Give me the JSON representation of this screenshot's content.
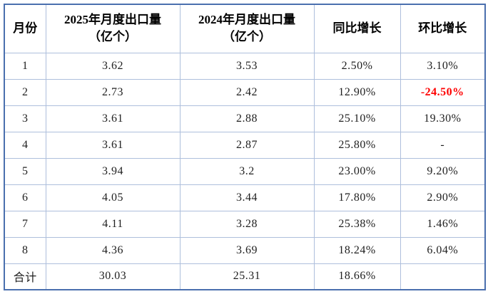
{
  "table": {
    "headers": {
      "month": "月份",
      "y2025_line1": "2025年月度出口量",
      "y2025_line2": "（亿个）",
      "y2024_line1": "2024年月度出口量",
      "y2024_line2": "（亿个）",
      "yoy": "同比增长",
      "mom": "环比增长"
    },
    "rows": [
      {
        "month": "1",
        "y2025": "3.62",
        "y2024": "3.53",
        "yoy": "2.50%",
        "mom": "3.10%"
      },
      {
        "month": "2",
        "y2025": "2.73",
        "y2024": "2.42",
        "yoy": "12.90%",
        "mom": "-24.50%"
      },
      {
        "month": "3",
        "y2025": "3.61",
        "y2024": "2.88",
        "yoy": "25.10%",
        "mom": "19.30%"
      },
      {
        "month": "4",
        "y2025": "3.61",
        "y2024": "2.87",
        "yoy": "25.80%",
        "mom": "-"
      },
      {
        "month": "5",
        "y2025": "3.94",
        "y2024": "3.2",
        "yoy": "23.00%",
        "mom": "9.20%"
      },
      {
        "month": "6",
        "y2025": "4.05",
        "y2024": "3.44",
        "yoy": "17.80%",
        "mom": "2.90%"
      },
      {
        "month": "7",
        "y2025": "4.11",
        "y2024": "3.28",
        "yoy": "25.38%",
        "mom": "1.46%"
      },
      {
        "month": "8",
        "y2025": "4.36",
        "y2024": "3.69",
        "yoy": "18.24%",
        "mom": "6.04%"
      },
      {
        "month": "合计",
        "y2025": "30.03",
        "y2024": "25.31",
        "yoy": "18.66%",
        "mom": ""
      }
    ]
  },
  "colors": {
    "outer_border": "#4a6fae",
    "grid_line": "#aebfdc",
    "header_text": "#000000",
    "body_text": "#1f1f1f",
    "negative_value": "#fe0000",
    "background": "#ffffff"
  },
  "chart_data": {
    "type": "table",
    "title": "",
    "columns": [
      "月份",
      "2025年月度出口量（亿个）",
      "2024年月度出口量（亿个）",
      "同比增长",
      "环比增长"
    ],
    "categories": [
      "1",
      "2",
      "3",
      "4",
      "5",
      "6",
      "7",
      "8",
      "合计"
    ],
    "series": [
      {
        "name": "2025年月度出口量（亿个）",
        "values": [
          3.62,
          2.73,
          3.61,
          3.61,
          3.94,
          4.05,
          4.11,
          4.36,
          30.03
        ]
      },
      {
        "name": "2024年月度出口量（亿个）",
        "values": [
          3.53,
          2.42,
          2.88,
          2.87,
          3.2,
          3.44,
          3.28,
          3.69,
          25.31
        ]
      },
      {
        "name": "同比增长",
        "values": [
          2.5,
          12.9,
          25.1,
          25.8,
          23.0,
          17.8,
          25.38,
          18.24,
          18.66
        ],
        "unit": "%"
      },
      {
        "name": "环比增长",
        "values": [
          3.1,
          -24.5,
          19.3,
          null,
          9.2,
          2.9,
          1.46,
          6.04,
          null
        ],
        "unit": "%"
      }
    ],
    "layout": {
      "grid": true,
      "legend_position": "none"
    }
  }
}
